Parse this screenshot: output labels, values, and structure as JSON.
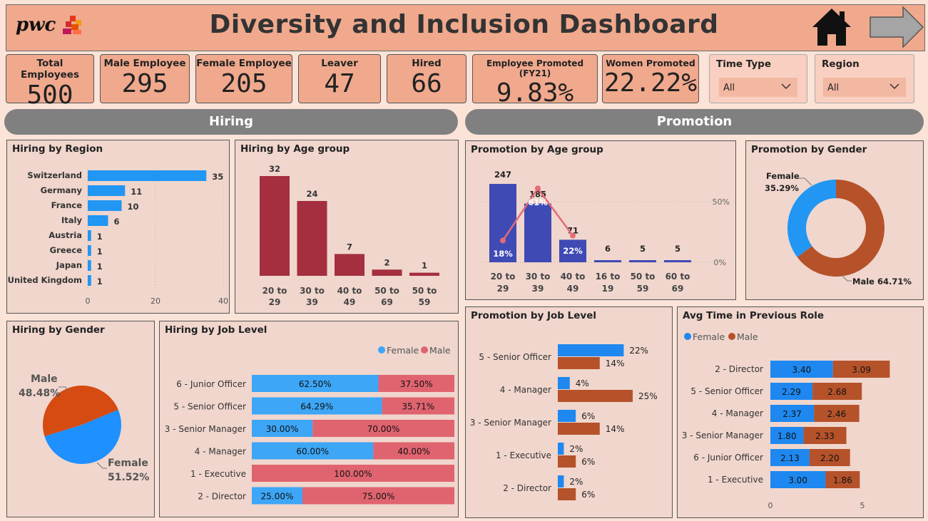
{
  "header": {
    "logo_text": "pwc",
    "title": "Diversity and Inclusion Dashboard",
    "icons": [
      "home-icon",
      "right-arrow-icon"
    ]
  },
  "kpis": [
    {
      "label": "Total Employees",
      "value": "500"
    },
    {
      "label": "Male Employee",
      "value": "295"
    },
    {
      "label": "Female Employee",
      "value": "205"
    },
    {
      "label": "Leaver",
      "value": "47"
    },
    {
      "label": "Hired",
      "value": "66"
    },
    {
      "label": "Employee Promoted (FY21)",
      "value": "9.83%"
    },
    {
      "label": "Women Promoted",
      "value": "22.22%"
    }
  ],
  "slicers": [
    {
      "label": "Time Type",
      "selected": "All"
    },
    {
      "label": "Region",
      "selected": "All"
    }
  ],
  "sections": {
    "hiring": "Hiring",
    "promotion": "Promotion"
  },
  "colors": {
    "blue": "#2196f3",
    "maroon": "#a52f3f",
    "indigo": "#3f4ab5",
    "rust": "#b5522a",
    "salmon": "#e06470",
    "orange": "#d54b12"
  },
  "chart_data": [
    {
      "id": "hiring_region",
      "type": "bar",
      "orientation": "horizontal",
      "title": "Hiring by Region",
      "categories": [
        "Switzerland",
        "Germany",
        "France",
        "Italy",
        "Austria",
        "Greece",
        "Japan",
        "United Kingdom"
      ],
      "values": [
        35,
        11,
        10,
        6,
        1,
        1,
        1,
        1
      ],
      "xlim": [
        0,
        40
      ],
      "xticks": [
        "0",
        "20",
        "40"
      ]
    },
    {
      "id": "hiring_age",
      "type": "bar",
      "title": "Hiring by Age group",
      "categories": [
        "20 to 29",
        "30 to 39",
        "40 to 49",
        "50 to 69",
        "50 to 59"
      ],
      "values": [
        32,
        24,
        7,
        2,
        1
      ]
    },
    {
      "id": "promo_age",
      "type": "bar",
      "title": "Promotion by Age group",
      "categories": [
        "20 to 29",
        "30 to 39",
        "40 to 49",
        "16 to 19",
        "50 to 59",
        "60 to 69"
      ],
      "values": [
        247,
        185,
        71,
        6,
        5,
        5
      ],
      "line_percent": [
        18,
        61,
        22,
        null,
        null,
        null
      ],
      "line_labels": [
        "18%",
        "61%",
        "22%"
      ],
      "y2ticks": [
        "50%",
        "0%"
      ]
    },
    {
      "id": "promo_gender",
      "type": "pie",
      "donut": true,
      "title": "Promotion by Gender",
      "categories": [
        "Female",
        "Male"
      ],
      "values": [
        35.29,
        64.71
      ],
      "labels": [
        "Female",
        "35.29%",
        "Male 64.71%"
      ]
    },
    {
      "id": "hiring_gender",
      "type": "pie",
      "title": "Hiring by Gender",
      "categories": [
        "Male",
        "Female"
      ],
      "values": [
        48.48,
        51.52
      ],
      "labels": [
        "Male",
        "48.48%",
        "Female",
        "51.52%"
      ]
    },
    {
      "id": "hiring_job",
      "type": "bar",
      "stacked_percent": true,
      "orientation": "horizontal",
      "title": "Hiring by Job Level",
      "legend": [
        "Female",
        "Male"
      ],
      "categories": [
        "6 - Junior Officer",
        "5 - Senior Officer",
        "3 - Senior Manager",
        "4 - Manager",
        "1 - Executive",
        "2 - Director"
      ],
      "series": [
        {
          "name": "Female",
          "values": [
            62.5,
            64.29,
            30.0,
            60.0,
            0,
            25.0
          ],
          "labels": [
            "62.50%",
            "64.29%",
            "30.00%",
            "60.00%",
            "",
            "25.00%"
          ]
        },
        {
          "name": "Male",
          "values": [
            37.5,
            35.71,
            70.0,
            40.0,
            100.0,
            75.0
          ],
          "labels": [
            "37.50%",
            "35.71%",
            "70.00%",
            "40.00%",
            "100.00%",
            "75.00%"
          ]
        }
      ]
    },
    {
      "id": "promo_job",
      "type": "bar",
      "orientation": "horizontal",
      "title": "Promotion by Job Level",
      "categories": [
        "5 - Senior Officer",
        "4 - Manager",
        "3 - Senior Manager",
        "1 - Executive",
        "2 - Director"
      ],
      "series": [
        {
          "name": "Female",
          "values": [
            22,
            4,
            6,
            2,
            2
          ],
          "labels": [
            "22%",
            "4%",
            "6%",
            "2%",
            "2%"
          ]
        },
        {
          "name": "Male",
          "values": [
            14,
            25,
            14,
            6,
            6
          ],
          "labels": [
            "14%",
            "25%",
            "14%",
            "6%",
            "6%"
          ]
        }
      ]
    },
    {
      "id": "avg_time",
      "type": "bar",
      "stacked": true,
      "orientation": "horizontal",
      "title": "Avg Time in Previous Role",
      "legend": [
        "Female",
        "Male"
      ],
      "categories": [
        "2 - Director",
        "5 - Senior Officer",
        "4 - Manager",
        "3 - Senior Manager",
        "6 - Junior Officer",
        "1 - Executive"
      ],
      "series": [
        {
          "name": "Female",
          "values": [
            3.4,
            2.29,
            2.37,
            1.8,
            2.13,
            3.0
          ],
          "labels": [
            "3.40",
            "2.29",
            "2.37",
            "1.80",
            "2.13",
            "3.00"
          ]
        },
        {
          "name": "Male",
          "values": [
            3.09,
            2.68,
            2.46,
            2.33,
            2.2,
            1.86
          ],
          "labels": [
            "3.09",
            "2.68",
            "2.46",
            "2.33",
            "2.20",
            "1.86"
          ]
        }
      ],
      "xticks": [
        "0",
        "5"
      ]
    }
  ]
}
